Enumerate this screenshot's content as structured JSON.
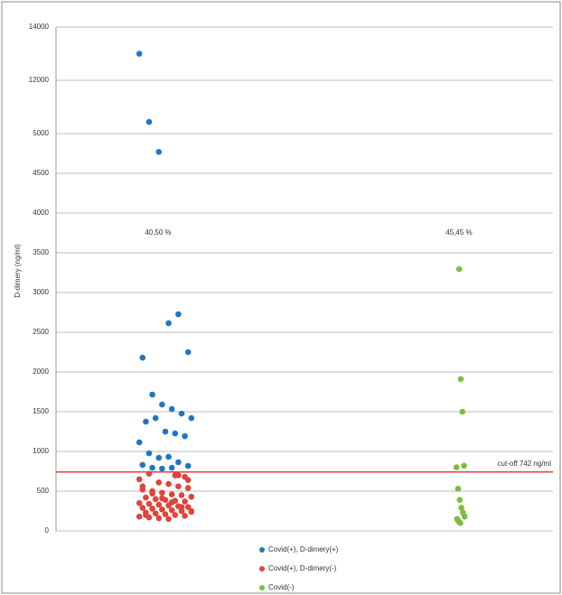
{
  "chart_data": {
    "type": "scatter",
    "y_label": "D-dimery (ng/ml)",
    "yticks": [
      0,
      500,
      1000,
      1500,
      2000,
      2500,
      3000,
      3500,
      4000,
      4500,
      5000,
      12000,
      14000
    ],
    "ylim": [
      0,
      14000
    ],
    "grid": true,
    "annotations": [
      "40,50 %",
      "45,45 %"
    ],
    "cutoff": {
      "value": 742,
      "label": "cut-off 742 ng/ml",
      "color": "#e0443a"
    },
    "legend": "bottom",
    "series": [
      {
        "name": "Covid(+), D-dimery(+)",
        "color": "#1f77c4",
        "values": [
          13000,
          6540,
          4770,
          2614,
          2727,
          2250,
          2180,
          1716,
          1591,
          1534,
          1477,
          1420,
          1375,
          1420,
          1250,
          1227,
          1193,
          1114,
          977,
          920,
          932,
          864,
          818,
          830,
          795,
          784,
          795
        ]
      },
      {
        "name": "Covid(+), D-dimery(-)",
        "color": "#e0443a",
        "values": [
          700,
          680,
          650,
          720,
          610,
          590,
          560,
          540,
          520,
          500,
          480,
          460,
          450,
          430,
          420,
          400,
          390,
          380,
          370,
          350,
          340,
          330,
          320,
          310,
          300,
          290,
          280,
          270,
          260,
          250,
          240,
          230,
          220,
          210,
          200,
          190,
          180,
          170,
          160,
          150,
          700,
          640,
          560,
          470,
          410,
          360,
          300,
          250,
          200
        ]
      },
      {
        "name": "Covid(-)",
        "color": "#7cbd3f",
        "values": [
          3295,
          1910,
          1500,
          820,
          800,
          530,
          390,
          290,
          230,
          180,
          150,
          120,
          100
        ]
      }
    ]
  }
}
